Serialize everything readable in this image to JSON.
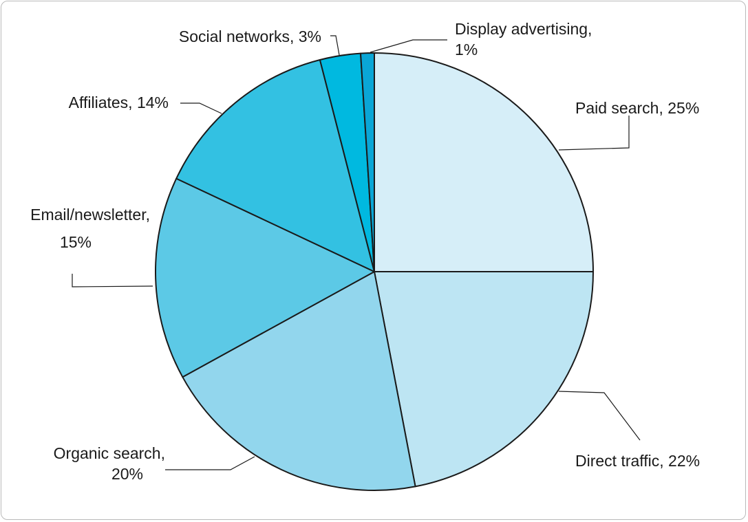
{
  "chart_data": {
    "type": "pie",
    "title": "",
    "slices": [
      {
        "name": "Paid search",
        "value": 25,
        "label_lines": [
          "Paid search, 25%"
        ],
        "color": "#d6eef8"
      },
      {
        "name": "Direct traffic",
        "value": 22,
        "label_lines": [
          "Direct traffic, 22%"
        ],
        "color": "#bde5f3"
      },
      {
        "name": "Organic search",
        "value": 20,
        "label_lines": [
          "Organic search,",
          "20%"
        ],
        "color": "#92d6ed"
      },
      {
        "name": "Email/newsletter",
        "value": 15,
        "label_lines": [
          "Email/newsletter,",
          "15%"
        ],
        "color": "#5cc9e6"
      },
      {
        "name": "Affiliates",
        "value": 14,
        "label_lines": [
          "Affiliates, 14%"
        ],
        "color": "#33c1e2"
      },
      {
        "name": "Social networks",
        "value": 3,
        "label_lines": [
          "Social networks, 3%"
        ],
        "color": "#00b9e0"
      },
      {
        "name": "Display advertising",
        "value": 1,
        "label_lines": [
          "Display advertising,",
          "1%"
        ],
        "color": "#0aa6d6"
      }
    ],
    "legend": "none"
  }
}
